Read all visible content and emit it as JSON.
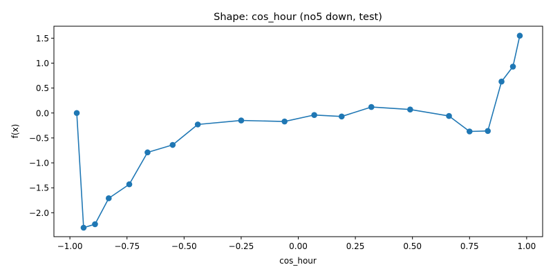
{
  "chart_data": {
    "type": "line",
    "title": "Shape: cos_hour (no5 down, test)",
    "xlabel": "cos_hour",
    "ylabel": "f(x)",
    "xlim": [
      -1.07,
      1.07
    ],
    "ylim": [
      -2.48,
      1.74
    ],
    "x_ticks": [
      -1.0,
      -0.75,
      -0.5,
      -0.25,
      0.0,
      0.25,
      0.5,
      0.75,
      1.0
    ],
    "x_tick_labels": [
      "−1.00",
      "−0.75",
      "−0.50",
      "−0.25",
      "0.00",
      "0.25",
      "0.50",
      "0.75",
      "1.00"
    ],
    "y_ticks": [
      -2.0,
      -1.5,
      -1.0,
      -0.5,
      0.0,
      0.5,
      1.0,
      1.5
    ],
    "y_tick_labels": [
      "−2.0",
      "−1.5",
      "−1.0",
      "−0.5",
      "0.0",
      "0.5",
      "1.0",
      "1.5"
    ],
    "grid": false,
    "legend": "none",
    "series": [
      {
        "color": "#1f77b4",
        "marker": "circle",
        "x": [
          -0.97,
          -0.94,
          -0.89,
          -0.83,
          -0.74,
          -0.66,
          -0.55,
          -0.44,
          -0.25,
          -0.06,
          0.07,
          0.19,
          0.32,
          0.49,
          0.66,
          0.75,
          0.83,
          0.89,
          0.94,
          0.97
        ],
        "y": [
          0.0,
          -2.3,
          -2.23,
          -1.71,
          -1.43,
          -0.79,
          -0.64,
          -0.23,
          -0.15,
          -0.17,
          -0.04,
          -0.07,
          0.12,
          0.07,
          -0.06,
          -0.37,
          -0.36,
          0.63,
          0.93,
          1.55
        ]
      }
    ]
  }
}
